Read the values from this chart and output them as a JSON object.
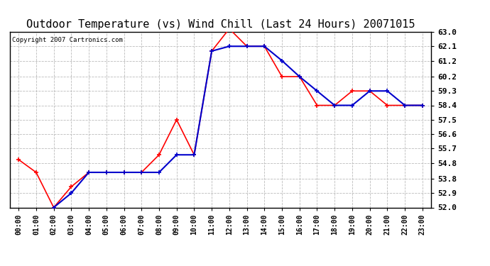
{
  "title": "Outdoor Temperature (vs) Wind Chill (Last 24 Hours) 20071015",
  "copyright": "Copyright 2007 Cartronics.com",
  "hours": [
    "00:00",
    "01:00",
    "02:00",
    "03:00",
    "04:00",
    "05:00",
    "06:00",
    "07:00",
    "08:00",
    "09:00",
    "10:00",
    "11:00",
    "12:00",
    "13:00",
    "14:00",
    "15:00",
    "16:00",
    "17:00",
    "18:00",
    "19:00",
    "20:00",
    "21:00",
    "22:00",
    "23:00"
  ],
  "temp": [
    55.0,
    54.2,
    52.0,
    53.3,
    54.2,
    54.2,
    54.2,
    54.2,
    55.3,
    57.5,
    55.3,
    61.8,
    63.2,
    62.1,
    62.1,
    60.2,
    60.2,
    58.4,
    58.4,
    59.3,
    59.3,
    58.4,
    58.4,
    58.4
  ],
  "windchill": [
    null,
    null,
    52.0,
    52.9,
    54.2,
    54.2,
    54.2,
    54.2,
    54.2,
    55.3,
    55.3,
    61.8,
    62.1,
    62.1,
    62.1,
    61.2,
    60.2,
    59.3,
    58.4,
    58.4,
    59.3,
    59.3,
    58.4,
    58.4
  ],
  "ylim": [
    52.0,
    63.0
  ],
  "yticks": [
    52.0,
    52.9,
    53.8,
    54.8,
    55.7,
    56.6,
    57.5,
    58.4,
    59.3,
    60.2,
    61.2,
    62.1,
    63.0
  ],
  "temp_color": "#ff0000",
  "windchill_color": "#0000cc",
  "bg_color": "#ffffff",
  "plot_bg_color": "#ffffff",
  "grid_color": "#bbbbbb",
  "title_fontsize": 11,
  "copyright_fontsize": 6.5
}
